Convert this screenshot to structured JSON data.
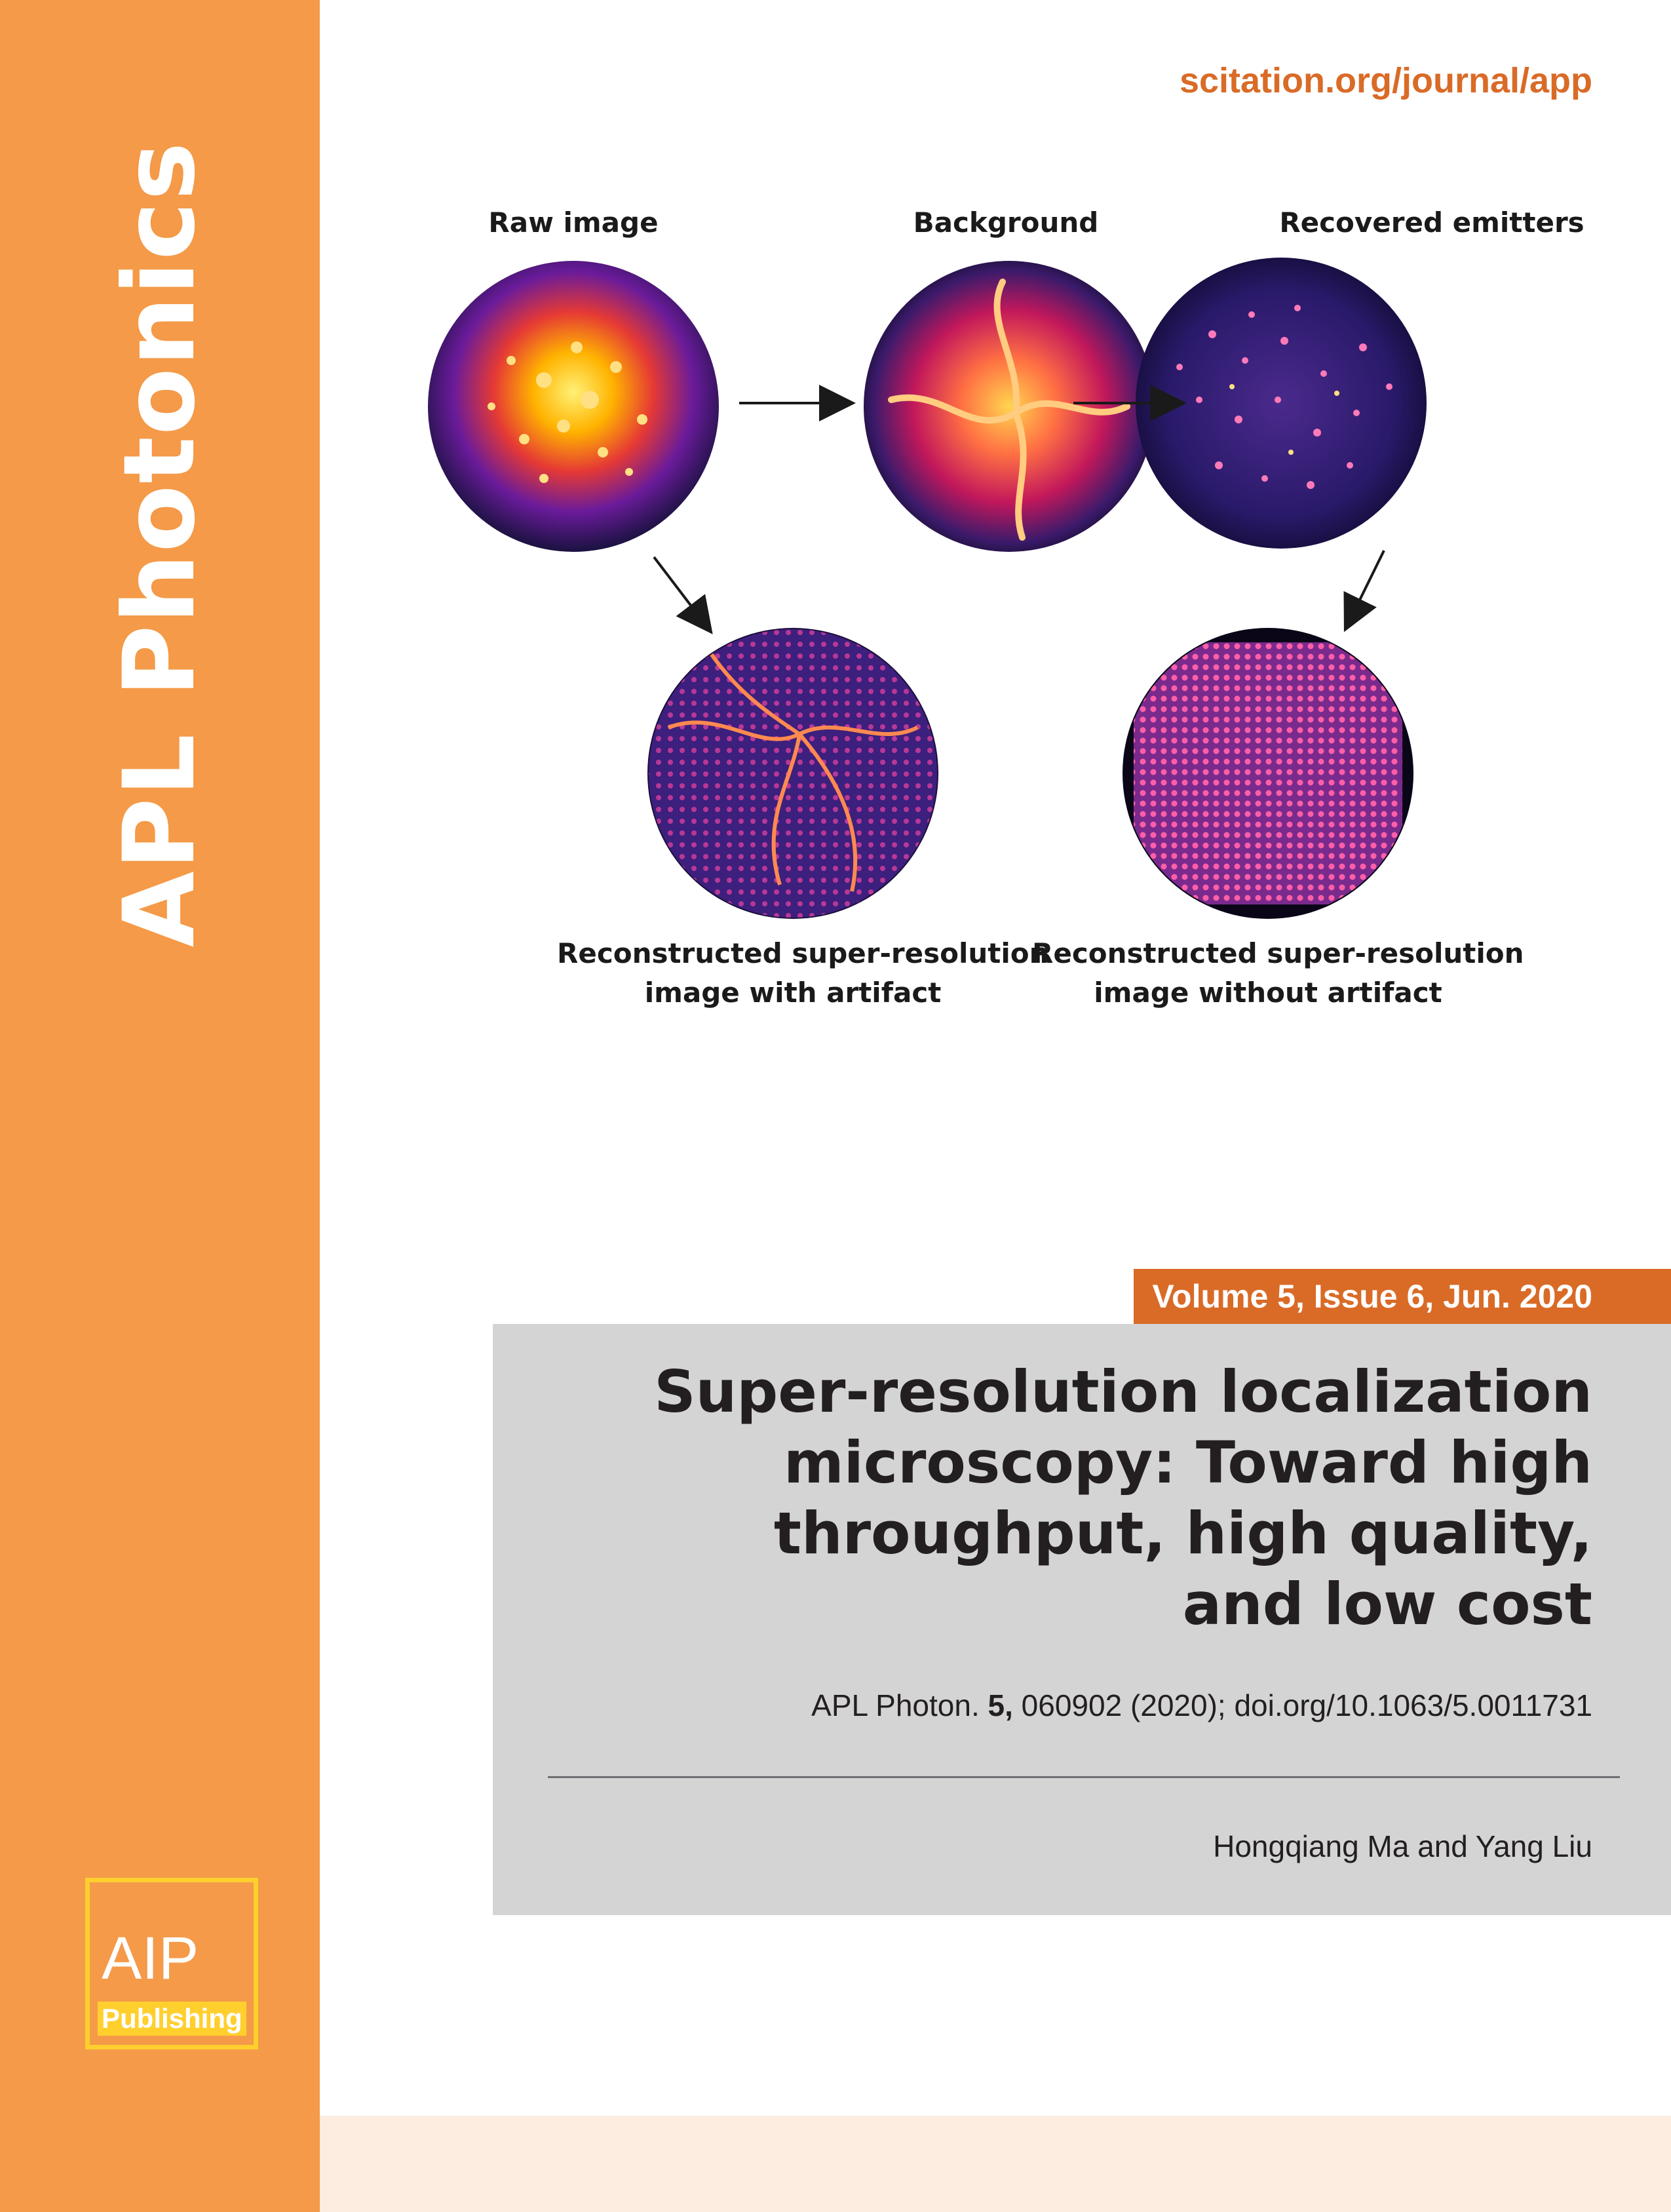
{
  "sidebar": {
    "journal_name": "APL Photonics",
    "color": "#f49a48"
  },
  "logo": {
    "mark": "AIP",
    "sub": "Publishing",
    "color": "#ffcf2e"
  },
  "header": {
    "url": "scitation.org/journal/app"
  },
  "figure": {
    "labels": {
      "raw": "Raw image",
      "background": "Background",
      "recovered": "Recovered emitters",
      "with_artifact_1": "Reconstructed super-resolution",
      "with_artifact_2": "image with artifact",
      "without_artifact_1": "Reconstructed super-resolution",
      "without_artifact_2": "image without artifact"
    }
  },
  "volume": "Volume 5, Issue 6, Jun. 2020",
  "article": {
    "title_lines": [
      "Super-resolution localization",
      "microscopy: Toward high",
      "throughput, high quality,",
      "and low cost"
    ],
    "citation_prefix": "APL Photon. ",
    "citation_volume": "5,",
    "citation_rest": " 060902 (2020); doi.org/10.1063/5.0011731",
    "authors": "Hongqiang Ma and Yang Liu"
  },
  "colors": {
    "accent": "#d96b27",
    "panel": "#d4d4d5",
    "strip": "#fdede0"
  }
}
